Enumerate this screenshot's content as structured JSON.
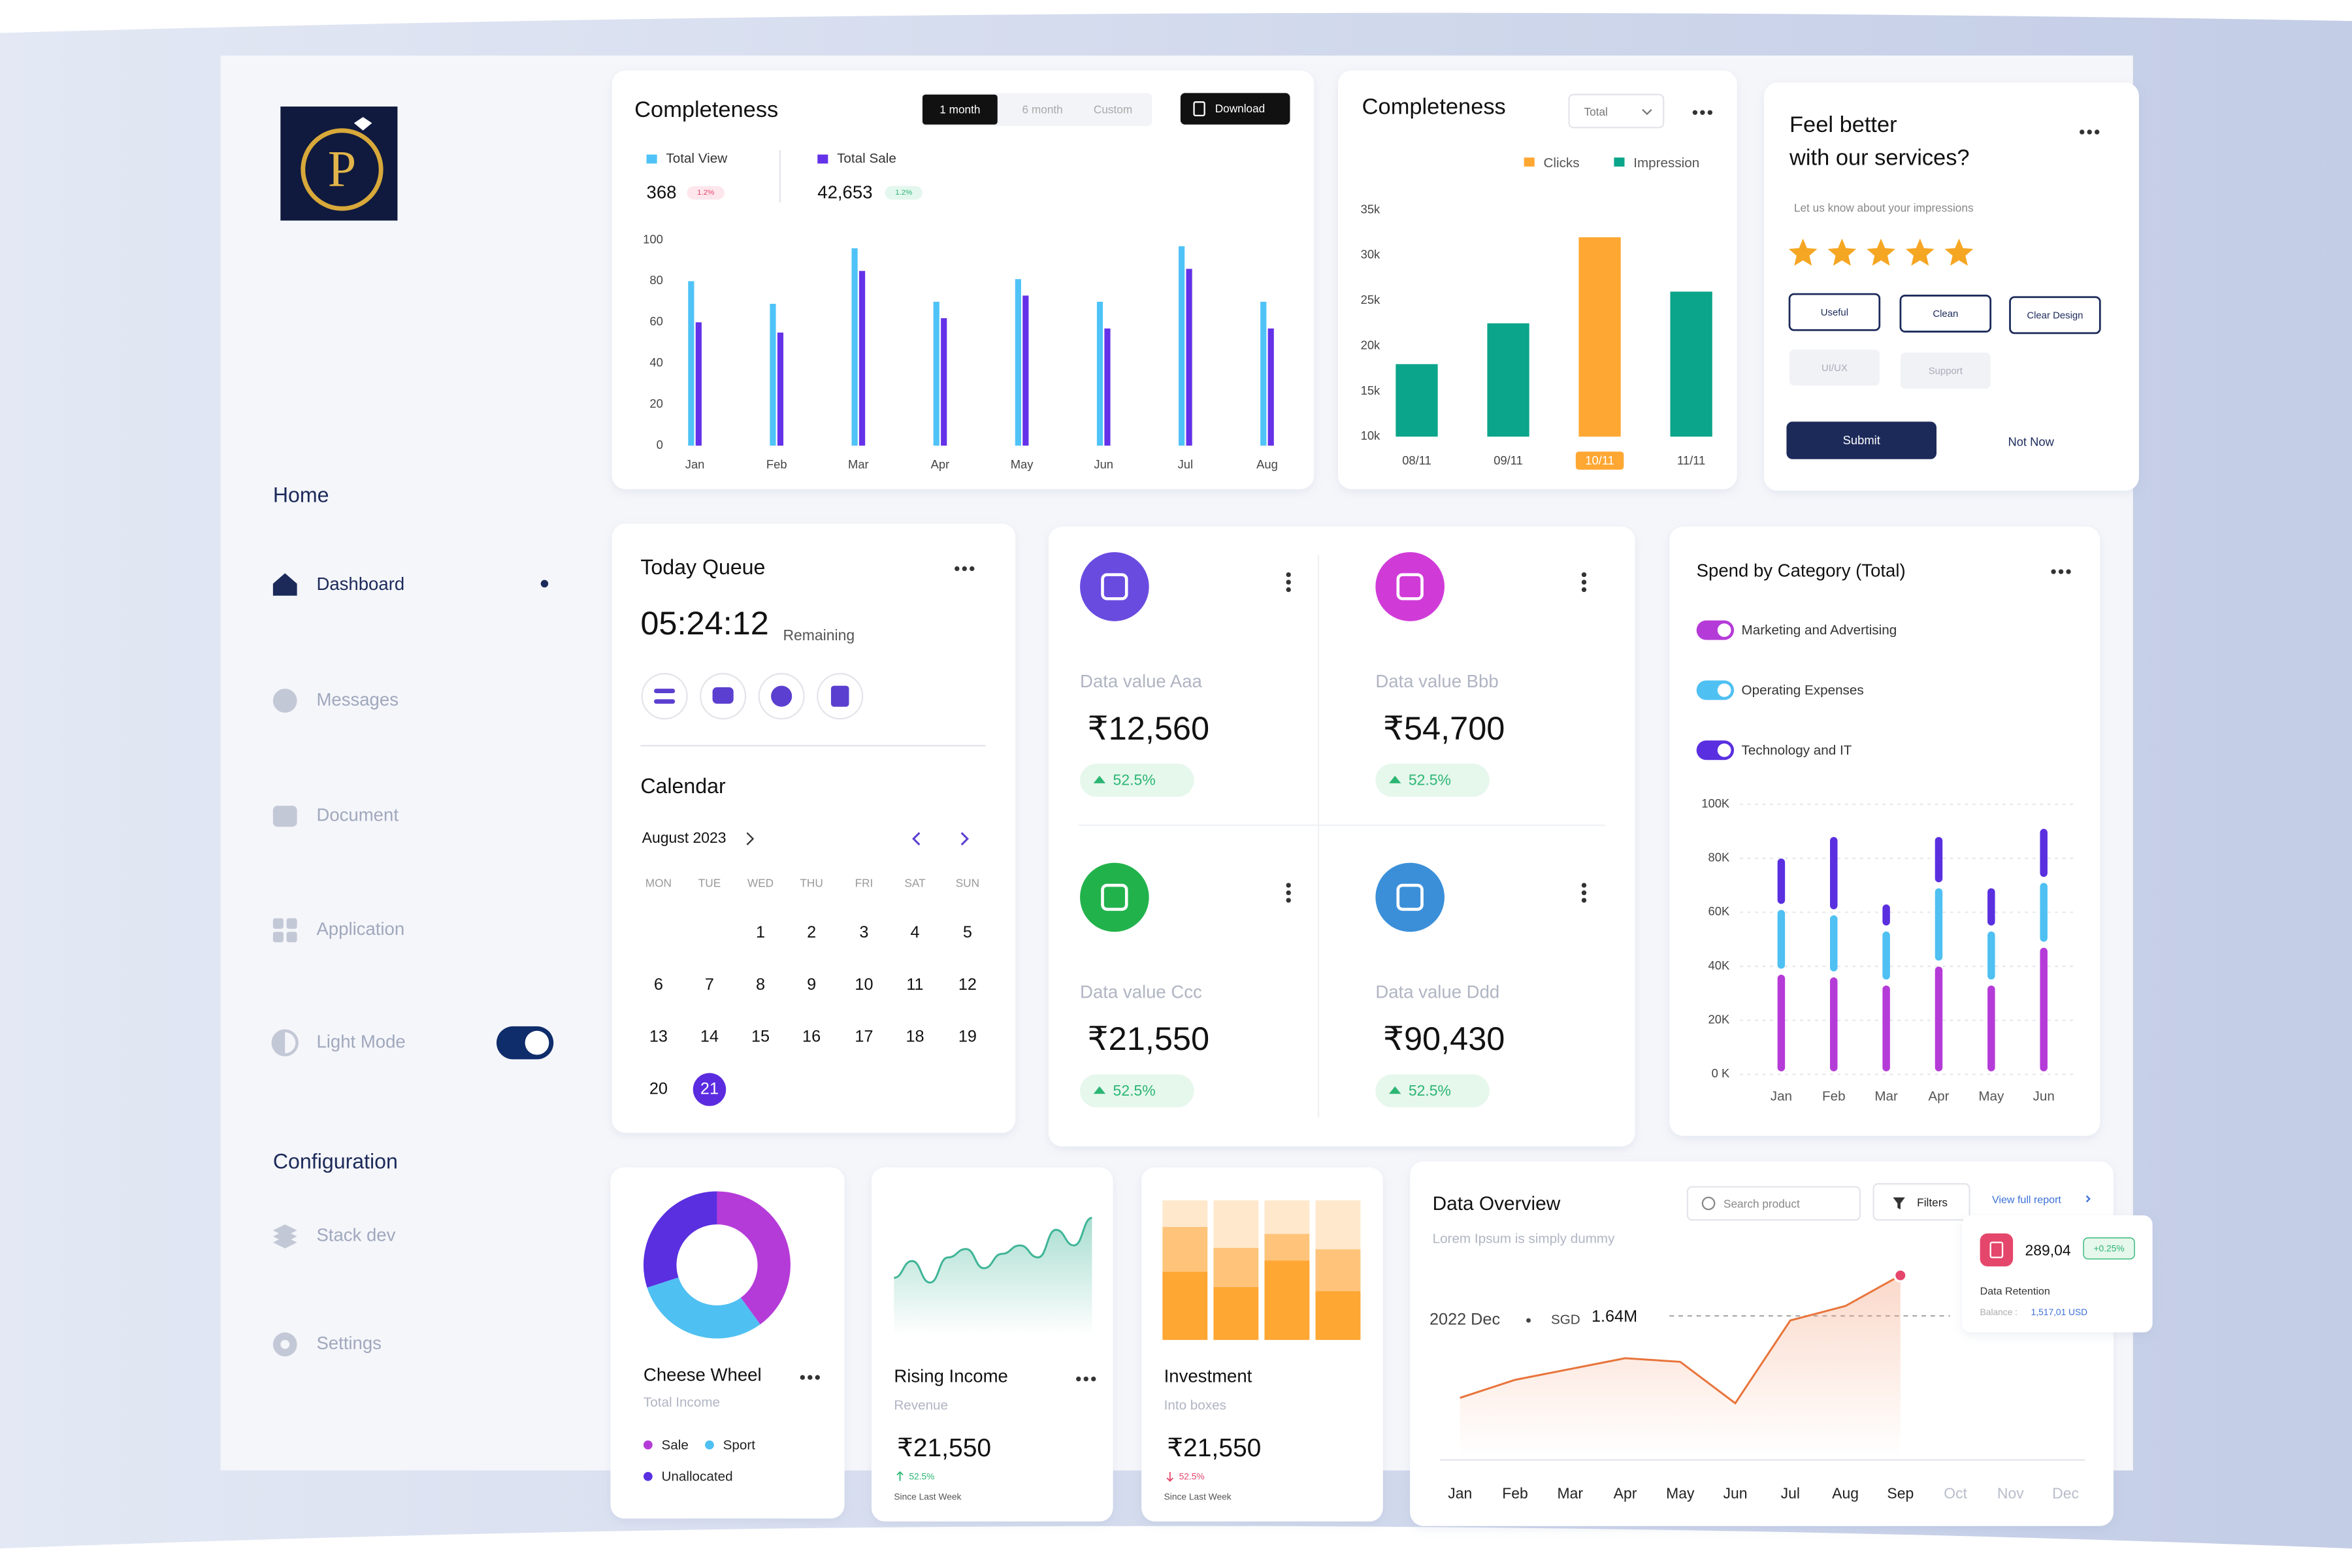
{
  "logo": "P",
  "sidebar": {
    "home": "Home",
    "items": [
      {
        "label": "Dashboard",
        "active": true
      },
      {
        "label": "Messages",
        "active": false
      },
      {
        "label": "Document",
        "active": false
      },
      {
        "label": "Application",
        "active": false
      }
    ],
    "mode": {
      "label": "Light Mode",
      "on": true
    },
    "configuration": "Configuration",
    "config_items": [
      "Stack dev",
      "Settings"
    ]
  },
  "sales_card": {
    "title": "Completeness",
    "tabs": [
      "1 month",
      "6 month",
      "Custom"
    ],
    "active_tab": 0,
    "download": "Download",
    "stats": [
      {
        "name": "Total View",
        "value": "368",
        "change": "1.2%",
        "trend": "down"
      },
      {
        "name": "Total Sale",
        "value": "42,653",
        "change": "1.2%",
        "trend": "up"
      }
    ],
    "chart_data": {
      "type": "bar",
      "categories": [
        "Jan",
        "Feb",
        "Mar",
        "Apr",
        "May",
        "Jun",
        "Jul",
        "Aug"
      ],
      "series": [
        {
          "name": "Total View",
          "color": "#4fc3f7",
          "values": [
            80,
            69,
            96,
            70,
            81,
            70,
            97,
            70
          ]
        },
        {
          "name": "Total Sale",
          "color": "#6432e8",
          "values": [
            60,
            55,
            85,
            62,
            73,
            57,
            86,
            57
          ]
        }
      ],
      "ylim": [
        0,
        100
      ],
      "yticks": [
        0,
        20,
        40,
        60,
        80,
        100
      ]
    }
  },
  "clicks_card": {
    "title": "Completeness",
    "dropdown": "Total",
    "chart_data": {
      "type": "bar",
      "categories": [
        "08/11",
        "09/11",
        "10/11",
        "11/11"
      ],
      "highlight_category": 2,
      "series": [
        {
          "name": "Clicks",
          "color": "#ffa733",
          "values": [
            null,
            null,
            32000,
            null
          ]
        },
        {
          "name": "Impression",
          "color": "#0aa58a",
          "values": [
            18000,
            22500,
            null,
            26000
          ]
        }
      ],
      "ylim": [
        10000,
        35000
      ],
      "yticks": [
        {
          "value": 10000,
          "label": "10k"
        },
        {
          "value": 15000,
          "label": "15k"
        },
        {
          "value": 20000,
          "label": "20k"
        },
        {
          "value": 25000,
          "label": "25k"
        },
        {
          "value": 30000,
          "label": "30k"
        },
        {
          "value": 35000,
          "label": "35k"
        }
      ]
    }
  },
  "feedback": {
    "title": [
      "Feel better",
      "with our services?"
    ],
    "prompt": "Let us know about your impressions",
    "rating": 5,
    "tags": [
      {
        "label": "Useful",
        "selected": true
      },
      {
        "label": "Clean",
        "selected": true
      },
      {
        "label": "Clear Design",
        "selected": true
      },
      {
        "label": "UI/UX",
        "selected": false
      },
      {
        "label": "Support",
        "selected": false
      }
    ],
    "submit": "Submit",
    "dismiss": "Not Now"
  },
  "queue": {
    "title": "Today Queue",
    "time": "05:24:12",
    "time_note": "Remaining"
  },
  "calendar": {
    "title": "Calendar",
    "month": "August 2023",
    "weekdays": [
      "MON",
      "TUE",
      "WED",
      "THU",
      "FRI",
      "SAT",
      "SUN"
    ],
    "weeks": [
      [
        null,
        null,
        1,
        2,
        3,
        4,
        5
      ],
      [
        6,
        7,
        8,
        9,
        10,
        11,
        12
      ],
      [
        13,
        14,
        15,
        16,
        17,
        18,
        19
      ],
      [
        20,
        21
      ]
    ],
    "selected": 21
  },
  "stat_cards": [
    {
      "name": "Data value Aaa",
      "value": "₹12,560",
      "change": "52.5%",
      "color": "#6a4be0"
    },
    {
      "name": "Data value Bbb",
      "value": "₹54,700",
      "change": "52.5%",
      "color": "#d03bd8"
    },
    {
      "name": "Data value Ccc",
      "value": "₹21,550",
      "change": "52.5%",
      "color": "#22b24c"
    },
    {
      "name": "Data value Ddd",
      "value": "₹90,430",
      "change": "52.5%",
      "color": "#3b8fd9"
    }
  ],
  "spend": {
    "title": "Spend by Category (Total)",
    "chart_data": {
      "type": "stacked_bar",
      "categories": [
        "Jan",
        "Feb",
        "Mar",
        "Apr",
        "May",
        "Jun"
      ],
      "series": [
        {
          "name": "Marketing and Advertising",
          "color": "#b53bd8",
          "values": [
            38000,
            37000,
            34000,
            41000,
            34000,
            48000
          ]
        },
        {
          "name": "Operating Expenses",
          "color": "#4fc0f2",
          "values": [
            24000,
            23000,
            20000,
            29000,
            20000,
            24000
          ]
        },
        {
          "name": "Technology and IT",
          "color": "#5a2fe0",
          "values": [
            19000,
            29000,
            10000,
            19000,
            16000,
            20000
          ]
        }
      ],
      "ylim": [
        0,
        100000
      ],
      "yticks": [
        {
          "value": 0,
          "label": "0 K"
        },
        {
          "value": 20000,
          "label": "20K"
        },
        {
          "value": 40000,
          "label": "40K"
        },
        {
          "value": 60000,
          "label": "60K"
        },
        {
          "value": 80000,
          "label": "80K"
        },
        {
          "value": 100000,
          "label": "100K"
        }
      ],
      "grid": true
    }
  },
  "cheese_wheel": {
    "title": "Cheese Wheel",
    "subtitle": "Total Income",
    "chart_data": {
      "type": "donut",
      "categories": [
        "Sale",
        "Sport",
        "Unallocated"
      ],
      "values": [
        40,
        30,
        30
      ],
      "colors": [
        "#b53bd8",
        "#4fc0f2",
        "#5a2fe0"
      ]
    }
  },
  "rising_income": {
    "title": "Rising Income",
    "subtitle": "Revenue",
    "value": "₹21,550",
    "change": "52.5%",
    "direction": "up",
    "note": "Since Last Week",
    "chart_data": {
      "type": "area",
      "values": [
        48,
        62,
        44,
        65,
        72,
        56,
        68,
        75,
        65,
        88,
        75,
        98
      ],
      "ylim": [
        0,
        100
      ],
      "color": "#3fb597"
    }
  },
  "investment": {
    "title": "Investment",
    "subtitle": "Into boxes",
    "value": "₹21,550",
    "change": "52.5%",
    "direction": "down",
    "note": "Since Last Week",
    "chart_data": {
      "type": "stacked_bar",
      "categories": [
        null,
        null,
        null,
        null
      ],
      "series": [
        {
          "color": "#ffa733",
          "values": [
            49,
            38,
            57,
            35
          ]
        },
        {
          "color": "#ffc47a",
          "values": [
            32,
            28,
            19,
            30
          ]
        },
        {
          "color": "#ffe8cc",
          "values": [
            19,
            34,
            24,
            35
          ]
        }
      ],
      "ylim": [
        0,
        100
      ]
    }
  },
  "data_overview": {
    "title": "Data Overview",
    "subtitle": "Lorem Ipsum is simply dummy",
    "search": "Search product",
    "filters": "Filters",
    "report_link": "View full report",
    "period": "2022 Dec",
    "currency": "SGD",
    "amount": "1.64M",
    "tooltip": {
      "value": "289,04",
      "change": "+0.25%",
      "label": "Data Retention",
      "balance_label": "Balance :",
      "balance": "1,517,01 USD"
    },
    "chart_data": {
      "type": "line",
      "categories": [
        "Jan",
        "Feb",
        "Mar",
        "Apr",
        "May",
        "Jun",
        "Jul",
        "Aug",
        "Sep",
        "Oct",
        "Nov",
        "Dec"
      ],
      "values": [
        32,
        42,
        48,
        54,
        52,
        29,
        75,
        83,
        100,
        null,
        null,
        null
      ],
      "ylim": [
        0,
        100
      ],
      "color": "#e8743b"
    }
  }
}
